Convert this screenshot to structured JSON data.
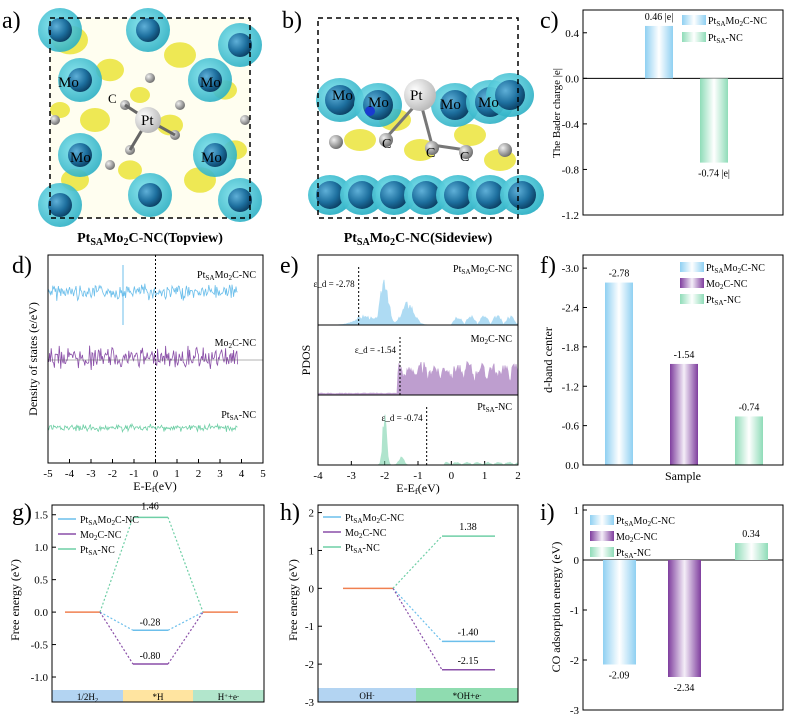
{
  "panels": {
    "a": {
      "letter": "a)",
      "caption": "Pt",
      "caption_sub": "SA",
      "caption_rest": "Mo",
      "caption_sub2": "2",
      "caption_end": "C-NC (Top view)",
      "labels": [
        "Mo",
        "Mo",
        "Mo",
        "Mo",
        "Pt",
        "C"
      ]
    },
    "b": {
      "letter": "b)",
      "caption": "Pt",
      "caption_sub": "SA",
      "caption_rest": "Mo",
      "caption_sub2": "2",
      "caption_end": "C-NC (Side view)",
      "labels": [
        "Mo",
        "Mo",
        "Pt",
        "Mo",
        "Mo",
        "C",
        "C",
        "C"
      ]
    },
    "c": {
      "letter": "c)"
    },
    "d": {
      "letter": "d)"
    },
    "e": {
      "letter": "e)"
    },
    "f": {
      "letter": "f)"
    },
    "g": {
      "letter": "g)"
    },
    "h": {
      "letter": "h)"
    },
    "i": {
      "letter": "i)"
    }
  },
  "colors": {
    "blue": "#6cbfeb",
    "purple": "#8a4fa8",
    "green": "#6fcfa6",
    "orange": "#f08050",
    "blue_bar": "#8fd0f2",
    "purple_bar": "#9b6bb8",
    "green_bar": "#8fdcb8",
    "cyan_iso": "#2fb5c8",
    "yellow_iso": "#e8e020"
  },
  "chart_data": [
    {
      "panel": "c",
      "type": "bar",
      "ylabel": "The Bader charge |e|",
      "ylim": [
        -1.2,
        0.6
      ],
      "yticks": [
        "0.4",
        "0.0",
        "-0.4",
        "-0.8",
        "-1.2"
      ],
      "series": [
        {
          "name": "Pt_SA Mo_2 C-NC",
          "value": 0.46,
          "label": "0.46 |e|"
        },
        {
          "name": "Pt_SA -NC",
          "value": -0.74,
          "label": "-0.74 |e|"
        }
      ]
    },
    {
      "panel": "d",
      "type": "line",
      "xlabel": "E-E_f (eV)",
      "ylabel": "Density of states (e/eV)",
      "xlim": [
        -5,
        5
      ],
      "xticks": [
        "-5",
        "-4",
        "-3",
        "-2",
        "-1",
        "0",
        "1",
        "2",
        "3",
        "4",
        "5"
      ],
      "series": [
        {
          "name": "Pt_SA Mo_2 C-NC"
        },
        {
          "name": "Mo_2 C-NC"
        },
        {
          "name": "Pt_SA -NC"
        }
      ]
    },
    {
      "panel": "e",
      "type": "area",
      "xlabel": "E-E_f (eV)",
      "ylabel": "PDOS",
      "xlim": [
        -4,
        2
      ],
      "xticks": [
        "-4",
        "-3",
        "-2",
        "-1",
        "0",
        "1",
        "2"
      ],
      "series": [
        {
          "name": "Pt_SA Mo_2 C-NC",
          "d_band": -2.78,
          "annot": "ε_d = -2.78"
        },
        {
          "name": "Mo_2 C-NC",
          "d_band": -1.54,
          "annot": "ε_d = -1.54"
        },
        {
          "name": "Pt_SA -NC",
          "d_band": -0.74,
          "annot": "ε_d = -0.74"
        }
      ]
    },
    {
      "panel": "f",
      "type": "bar",
      "xlabel": "Sample",
      "ylabel": "d-band center",
      "ylim": [
        0,
        -3.2
      ],
      "yticks": [
        "-3.0",
        "-2.4",
        "-1.8",
        "-1.2",
        "-0.6",
        "0.0"
      ],
      "series": [
        {
          "name": "Pt_SA Mo_2 C-NC",
          "value": -2.78,
          "label": "-2.78"
        },
        {
          "name": "Mo_2 C-NC",
          "value": -1.54,
          "label": "-1.54"
        },
        {
          "name": "Pt_SA -NC",
          "value": -0.74,
          "label": "-0.74"
        }
      ]
    },
    {
      "panel": "g",
      "type": "line",
      "ylabel": "Free energy (eV)",
      "ylim": [
        -1.2,
        1.65
      ],
      "yticks": [
        "1.5",
        "1.0",
        "0.5",
        "0.0",
        "-0.5",
        "-1.0"
      ],
      "categories": [
        "1/2 H_2",
        "*H",
        "H^+ +e^-"
      ],
      "series": [
        {
          "name": "Pt_SA Mo_2 C-NC",
          "values": [
            0,
            -0.28,
            0
          ],
          "label": "-0.28"
        },
        {
          "name": "Mo_2 C-NC",
          "values": [
            0,
            -0.8,
            0
          ],
          "label": "-0.80"
        },
        {
          "name": "Pt_SA -NC",
          "values": [
            0,
            1.46,
            0
          ],
          "label": "1.46"
        }
      ]
    },
    {
      "panel": "h",
      "type": "line",
      "ylabel": "Free energy (eV)",
      "ylim": [
        -3,
        2.2
      ],
      "yticks": [
        "2",
        "1",
        "0",
        "-1",
        "-2",
        "-3"
      ],
      "categories": [
        "OH^-",
        "*OH+e^-"
      ],
      "series": [
        {
          "name": "Pt_SA Mo_2 C-NC",
          "values": [
            0,
            -1.4
          ],
          "label": "-1.40"
        },
        {
          "name": "Mo_2 C-NC",
          "values": [
            0,
            -2.15
          ],
          "label": "-2.15"
        },
        {
          "name": "Pt_SA -NC",
          "values": [
            0,
            1.38
          ],
          "label": "1.38"
        }
      ]
    },
    {
      "panel": "i",
      "type": "bar",
      "ylabel": "CO adsorption energy (eV)",
      "ylim": [
        -3,
        1.1
      ],
      "yticks": [
        "1",
        "0",
        "-1",
        "-2",
        "-3"
      ],
      "series": [
        {
          "name": "Pt_SA Mo_2 C-NC",
          "value": -2.09,
          "label": "-2.09"
        },
        {
          "name": "Mo_2 C-NC",
          "value": -2.34,
          "label": "-2.34"
        },
        {
          "name": "Pt_SA -NC",
          "value": 0.34,
          "label": "0.34"
        }
      ]
    }
  ]
}
